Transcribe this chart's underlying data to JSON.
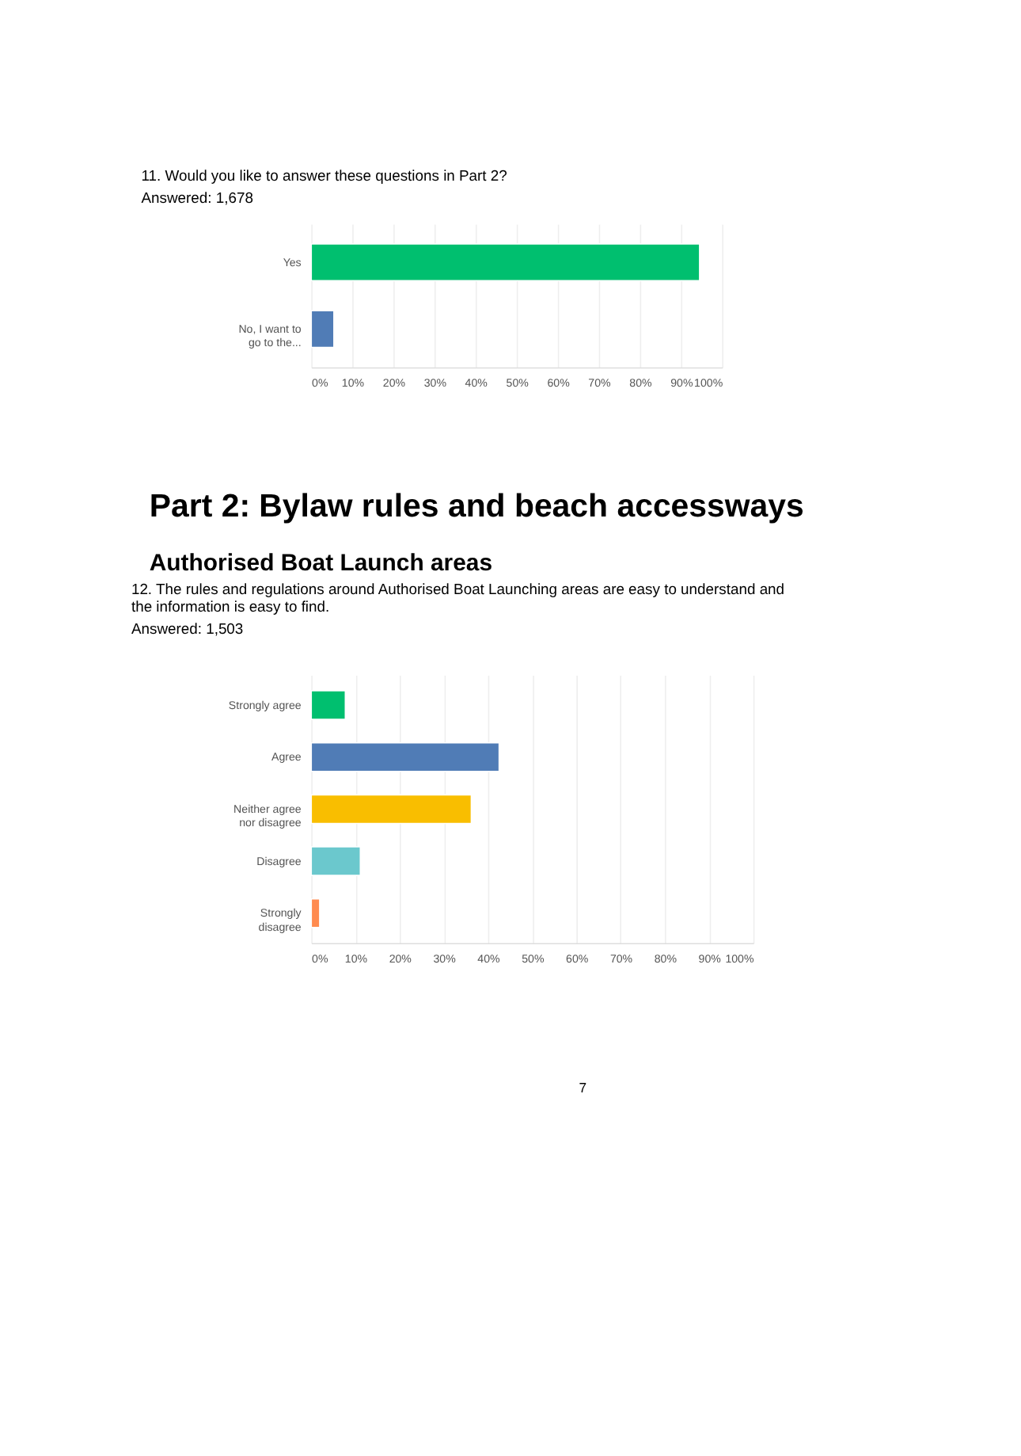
{
  "chart_data": [
    {
      "type": "bar",
      "orientation": "horizontal",
      "title": "11. Would you like to answer these questions in Part 2?",
      "subtitle": "Answered: 1,678",
      "categories": [
        "Yes",
        "No, I want to go to the..."
      ],
      "values": [
        94.5,
        5.5
      ],
      "colors": [
        "#00bf6f",
        "#507cb6"
      ],
      "xlim": [
        0,
        100
      ],
      "xticks": [
        {
          "value": 0,
          "label": "0%"
        },
        {
          "value": 10,
          "label": "10%"
        },
        {
          "value": 20,
          "label": "20%"
        },
        {
          "value": 30,
          "label": "30%"
        },
        {
          "value": 40,
          "label": "40%"
        },
        {
          "value": 50,
          "label": "50%"
        },
        {
          "value": 60,
          "label": "60%"
        },
        {
          "value": 70,
          "label": "70%"
        },
        {
          "value": 80,
          "label": "80%"
        },
        {
          "value": 90,
          "label": "90%"
        },
        {
          "value": 100,
          "label": "100%"
        }
      ],
      "grid": "x"
    },
    {
      "type": "bar",
      "orientation": "horizontal",
      "title": "12. The rules and regulations around Authorised Boat Launching areas are easy to understand and the information is easy to find.",
      "subtitle": "Answered: 1,503",
      "annotations": [
        "Part 2: Bylaw rules and beach accessways",
        "Authorised Boat Launch areas",
        "7"
      ],
      "categories": [
        "Strongly agree",
        "Agree",
        "Neither agree nor disagree",
        "Disagree",
        "Strongly disagree"
      ],
      "values": [
        7.7,
        42.5,
        36.2,
        11.1,
        1.9
      ],
      "colors": [
        "#00bf6f",
        "#507cb6",
        "#f9be00",
        "#6bc8cd",
        "#ff8b4f"
      ],
      "xlim": [
        0,
        100
      ],
      "xticks": [
        {
          "value": 0,
          "label": "0%"
        },
        {
          "value": 10,
          "label": "10%"
        },
        {
          "value": 20,
          "label": "20%"
        },
        {
          "value": 30,
          "label": "30%"
        },
        {
          "value": 40,
          "label": "40%"
        },
        {
          "value": 50,
          "label": "50%"
        },
        {
          "value": 60,
          "label": "60%"
        },
        {
          "value": 70,
          "label": "70%"
        },
        {
          "value": 80,
          "label": "80%"
        },
        {
          "value": 90,
          "label": "90%"
        },
        {
          "value": 100,
          "label": "100%"
        }
      ],
      "grid": "x"
    }
  ]
}
